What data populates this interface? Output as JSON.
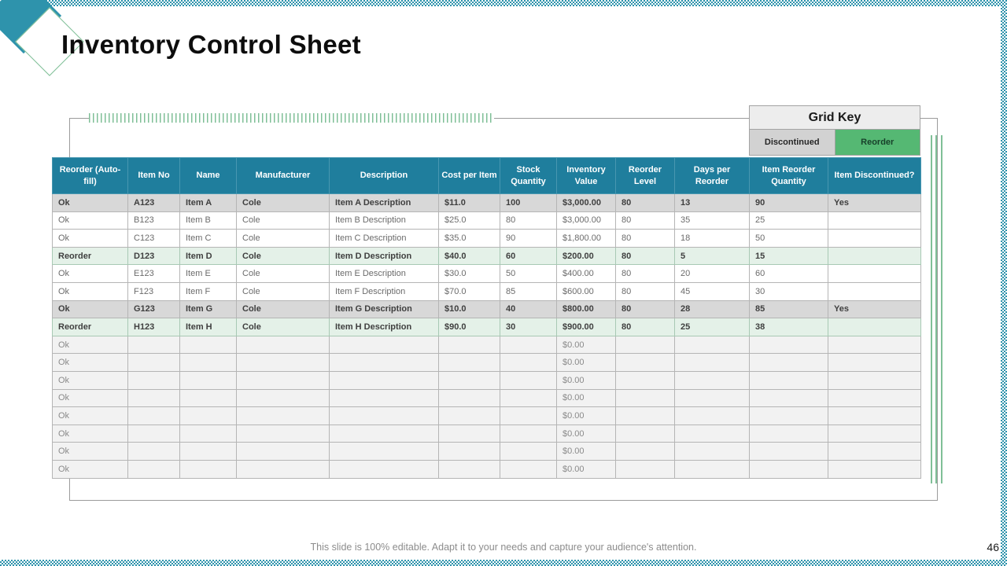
{
  "slide": {
    "title": "Inventory Control Sheet",
    "footer": "This slide is 100% editable. Adapt it to your needs and capture your audience's attention.",
    "page_number": "46"
  },
  "grid_key": {
    "title": "Grid Key",
    "discontinued_label": "Discontinued",
    "reorder_label": "Reorder"
  },
  "colors": {
    "accent_teal": "#2e93ac",
    "table_header_teal": "#1f7e9d",
    "legend_green": "#55b873",
    "row_discontinued_gray": "#d8d8d8",
    "row_reorder_green": "#e4f1e8",
    "row_empty_gray": "#f2f2f2",
    "hatch_green": "#7fbf97"
  },
  "table": {
    "columns": [
      "Reorder (Auto-fill)",
      "Item No",
      "Name",
      "Manufacturer",
      "Description",
      "Cost per Item",
      "Stock Quantity",
      "Inventory Value",
      "Reorder Level",
      "Days per Reorder",
      "Item Reorder Quantity",
      "Item Discontinued?"
    ],
    "rows": [
      {
        "style": "discontinued",
        "cells": [
          "Ok",
          "A123",
          "Item A",
          "Cole",
          "Item A Description",
          "$11.0",
          "100",
          "$3,000.00",
          "80",
          "13",
          "90",
          "Yes"
        ]
      },
      {
        "style": "plain",
        "cells": [
          "Ok",
          "B123",
          "Item B",
          "Cole",
          "Item B Description",
          "$25.0",
          "80",
          "$3,000.00",
          "80",
          "35",
          "25",
          ""
        ]
      },
      {
        "style": "plain",
        "cells": [
          "Ok",
          "C123",
          "Item C",
          "Cole",
          "Item C Description",
          "$35.0",
          "90",
          "$1,800.00",
          "80",
          "18",
          "50",
          ""
        ]
      },
      {
        "style": "reorder",
        "cells": [
          "Reorder",
          "D123",
          "Item D",
          "Cole",
          "Item D Description",
          "$40.0",
          "60",
          "$200.00",
          "80",
          "5",
          "15",
          ""
        ]
      },
      {
        "style": "plain",
        "cells": [
          "Ok",
          "E123",
          "Item E",
          "Cole",
          "Item E Description",
          "$30.0",
          "50",
          "$400.00",
          "80",
          "20",
          "60",
          ""
        ]
      },
      {
        "style": "plain",
        "cells": [
          "Ok",
          "F123",
          "Item F",
          "Cole",
          "Item F Description",
          "$70.0",
          "85",
          "$600.00",
          "80",
          "45",
          "30",
          ""
        ]
      },
      {
        "style": "discontinued",
        "cells": [
          "Ok",
          "G123",
          "Item G",
          "Cole",
          "Item G Description",
          "$10.0",
          "40",
          "$800.00",
          "80",
          "28",
          "85",
          "Yes"
        ]
      },
      {
        "style": "reorder",
        "cells": [
          "Reorder",
          "H123",
          "Item H",
          "Cole",
          "Item H Description",
          "$90.0",
          "30",
          "$900.00",
          "80",
          "25",
          "38",
          ""
        ]
      },
      {
        "style": "empty",
        "cells": [
          "Ok",
          "",
          "",
          "",
          "",
          "",
          "",
          "$0.00",
          "",
          "",
          "",
          ""
        ]
      },
      {
        "style": "empty",
        "cells": [
          "Ok",
          "",
          "",
          "",
          "",
          "",
          "",
          "$0.00",
          "",
          "",
          "",
          ""
        ]
      },
      {
        "style": "empty",
        "cells": [
          "Ok",
          "",
          "",
          "",
          "",
          "",
          "",
          "$0.00",
          "",
          "",
          "",
          ""
        ]
      },
      {
        "style": "empty",
        "cells": [
          "Ok",
          "",
          "",
          "",
          "",
          "",
          "",
          "$0.00",
          "",
          "",
          "",
          ""
        ]
      },
      {
        "style": "empty",
        "cells": [
          "Ok",
          "",
          "",
          "",
          "",
          "",
          "",
          "$0.00",
          "",
          "",
          "",
          ""
        ]
      },
      {
        "style": "empty",
        "cells": [
          "Ok",
          "",
          "",
          "",
          "",
          "",
          "",
          "$0.00",
          "",
          "",
          "",
          ""
        ]
      },
      {
        "style": "empty",
        "cells": [
          "Ok",
          "",
          "",
          "",
          "",
          "",
          "",
          "$0.00",
          "",
          "",
          "",
          ""
        ]
      },
      {
        "style": "empty",
        "cells": [
          "Ok",
          "",
          "",
          "",
          "",
          "",
          "",
          "$0.00",
          "",
          "",
          "",
          ""
        ]
      }
    ]
  }
}
